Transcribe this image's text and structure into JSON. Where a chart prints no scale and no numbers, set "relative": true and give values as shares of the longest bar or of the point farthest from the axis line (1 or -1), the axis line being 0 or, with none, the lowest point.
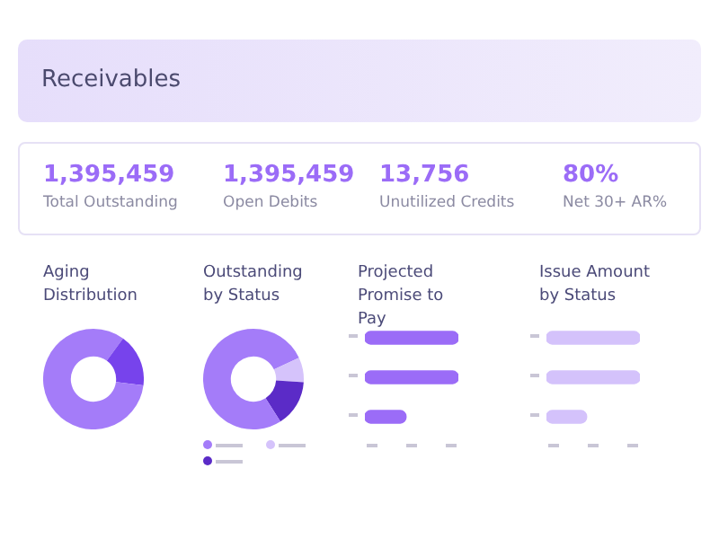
{
  "chart_data": [
    {
      "type": "other",
      "title": "Receivables",
      "categories": [
        "Total Outstanding",
        "Open Debits",
        "Unutilized Credits",
        "Net 30+ AR%"
      ],
      "value_labels": [
        "1,395,459",
        "1,395,459",
        "13,756",
        "80%"
      ],
      "color": "#9b6cf7"
    },
    {
      "type": "donut",
      "title": "Aging Distribution",
      "categories": [
        null,
        null,
        null
      ],
      "values": [
        10,
        17,
        73
      ],
      "colors": [
        "#a47cf9",
        "#7743ec",
        "#a47cf9"
      ]
    },
    {
      "type": "donut",
      "title": "Outstanding by Status",
      "categories": [
        null,
        null,
        null,
        null
      ],
      "values": [
        18,
        8,
        15,
        59
      ],
      "colors": [
        "#a47cf9",
        "#d5c3fb",
        "#5b2bc7",
        "#a47cf9"
      ]
    },
    {
      "type": "bar",
      "title": "Projected Promise to Pay",
      "orientation": "horizontal",
      "relative": true,
      "categories": [
        null,
        null,
        null
      ],
      "values": [
        1,
        1,
        0.44
      ],
      "color": "#9b6cf7"
    },
    {
      "type": "bar",
      "title": "Issue Amount by Status",
      "orientation": "horizontal",
      "relative": true,
      "categories": [
        null,
        null,
        null
      ],
      "values": [
        1,
        1,
        0.43
      ],
      "color": "#d4c2fb"
    }
  ]
}
